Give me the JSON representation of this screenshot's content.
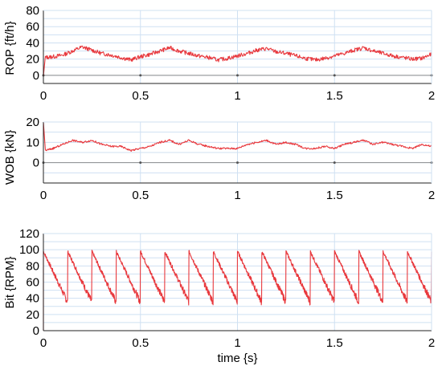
{
  "chart_data": [
    {
      "type": "line",
      "ylabel": "ROP {ft/h}",
      "xlabel": "",
      "xlim": [
        0,
        2
      ],
      "ylim": [
        -10,
        80
      ],
      "yticks": [
        0,
        20,
        40,
        60,
        80
      ],
      "ytick_labels": [
        "0",
        "20",
        "40",
        "60",
        "80"
      ],
      "xticks": [
        0,
        0.5,
        1,
        1.5,
        2
      ],
      "xtick_labels": [
        "0",
        "0.5",
        "1",
        "1.5",
        "2"
      ],
      "grid": true,
      "line_color": "#e8383d",
      "zero_line_color": "#8c8c8c",
      "series": [
        {
          "x": [
            0,
            0.01,
            0.05,
            0.1,
            0.15,
            0.2,
            0.25,
            0.3,
            0.35,
            0.4,
            0.45,
            0.5,
            0.55,
            0.6,
            0.65,
            0.7,
            0.75,
            0.8,
            0.85,
            0.9,
            0.95,
            1.0,
            1.05,
            1.1,
            1.15,
            1.2,
            1.25,
            1.3,
            1.35,
            1.4,
            1.45,
            1.5,
            1.55,
            1.6,
            1.65,
            1.7,
            1.75,
            1.8,
            1.85,
            1.9,
            1.95,
            2.0
          ],
          "y": [
            -1,
            22,
            23,
            25,
            30,
            35,
            31,
            27,
            25,
            22,
            19,
            23,
            26,
            30,
            34,
            30,
            27,
            24,
            22,
            19,
            21,
            24,
            27,
            31,
            33,
            29,
            27,
            24,
            21,
            19,
            21,
            24,
            27,
            31,
            34,
            30,
            27,
            24,
            22,
            20,
            21,
            26
          ]
        }
      ]
    },
    {
      "type": "line",
      "ylabel": "WOB {kN}",
      "xlabel": "",
      "xlim": [
        0,
        2
      ],
      "ylim": [
        -10,
        20
      ],
      "yticks": [
        0,
        10,
        20
      ],
      "ytick_labels": [
        "0",
        "10",
        "20"
      ],
      "xticks": [
        0,
        0.5,
        1,
        1.5,
        2
      ],
      "xtick_labels": [
        "0",
        "0.5",
        "1",
        "1.5",
        "2"
      ],
      "grid": true,
      "line_color": "#e8383d",
      "zero_line_color": "#8c8c8c",
      "series": [
        {
          "x": [
            0,
            0.01,
            0.05,
            0.1,
            0.15,
            0.2,
            0.25,
            0.3,
            0.35,
            0.4,
            0.45,
            0.5,
            0.55,
            0.6,
            0.65,
            0.7,
            0.75,
            0.8,
            0.85,
            0.9,
            0.95,
            1.0,
            1.05,
            1.1,
            1.15,
            1.2,
            1.25,
            1.3,
            1.35,
            1.4,
            1.45,
            1.5,
            1.55,
            1.6,
            1.65,
            1.7,
            1.75,
            1.8,
            1.85,
            1.9,
            1.95,
            2.0
          ],
          "y": [
            20,
            6,
            7,
            9,
            11,
            10,
            11,
            9,
            8,
            8,
            6,
            7,
            8,
            10,
            11,
            9,
            11,
            9,
            8,
            7,
            7,
            7,
            9,
            10,
            11,
            9,
            10,
            9,
            7,
            7,
            8,
            7,
            9,
            10,
            11,
            9,
            10,
            9,
            8,
            7,
            9,
            8
          ]
        }
      ]
    },
    {
      "type": "line",
      "ylabel": "Bit {RPM}",
      "xlabel": "time {s}",
      "xlim": [
        0,
        2
      ],
      "ylim": [
        0,
        120
      ],
      "yticks": [
        0,
        10,
        20,
        30,
        40,
        50,
        60,
        70,
        80,
        90,
        100,
        110,
        120
      ],
      "ytick_labels": [
        "0",
        "20",
        "40",
        "60",
        "80",
        "100",
        "120"
      ],
      "ytick_label_values": [
        0,
        20,
        40,
        60,
        80,
        100,
        120
      ],
      "xticks": [
        0,
        0.5,
        1,
        1.5,
        2
      ],
      "xtick_labels": [
        "0",
        "0.5",
        "1",
        "1.5",
        "2"
      ],
      "grid": true,
      "line_color": "#e8383d",
      "series": [
        {
          "sawtooth_period": 0.125,
          "peak": 98,
          "trough": 35,
          "start": 0
        }
      ]
    }
  ]
}
